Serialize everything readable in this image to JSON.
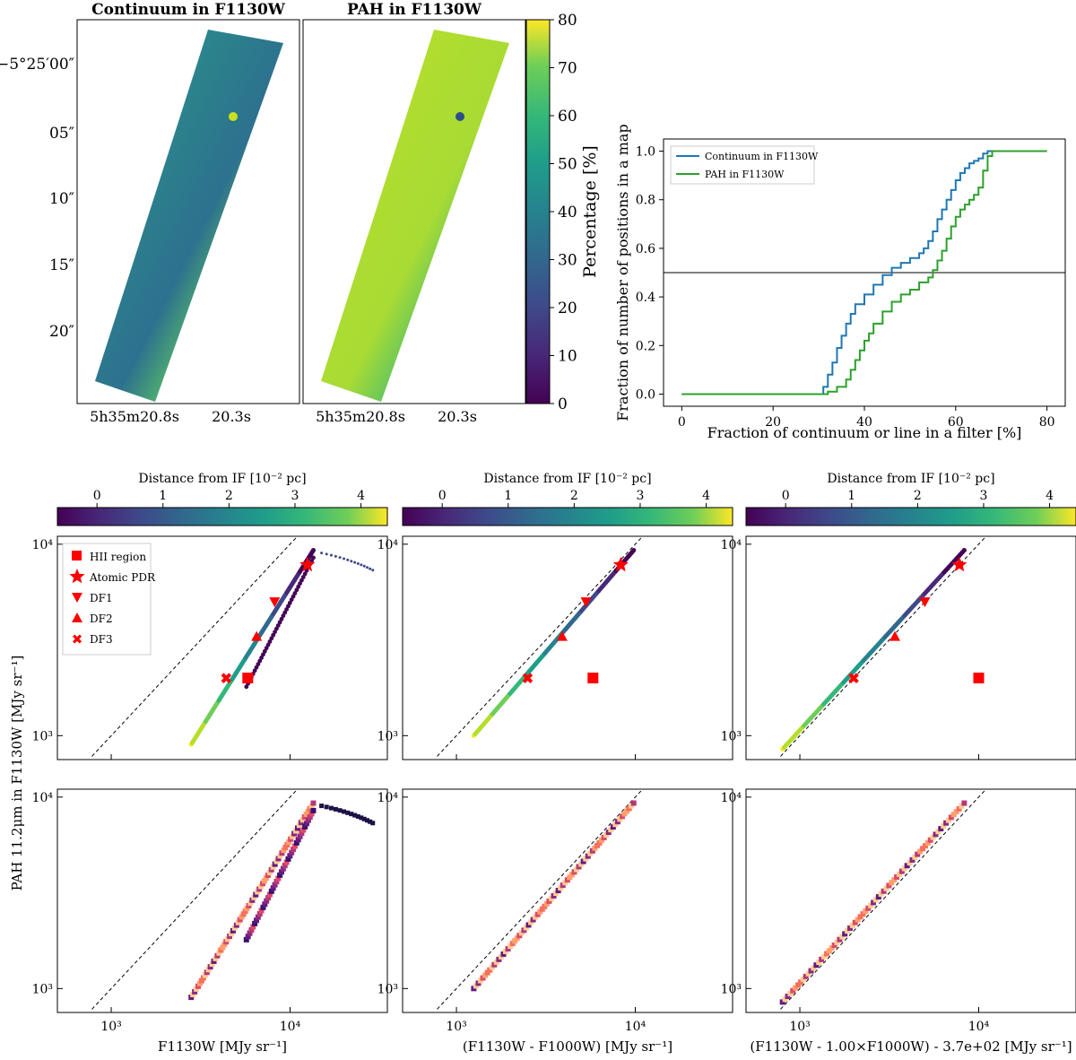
{
  "maps": {
    "title_left": "Continuum in F1130W",
    "title_right": "PAH in F1130W",
    "colorbar_label": "Percentage [%]",
    "colorbar_ticks": [
      "0",
      "10",
      "20",
      "30",
      "40",
      "50",
      "60",
      "70",
      "80"
    ],
    "dec_labels": [
      "−5°25′00″",
      "05″",
      "10″",
      "15″",
      "20″"
    ],
    "ra_labels": [
      "5h35m20.8s",
      "20.3s"
    ]
  },
  "chart_data": [
    {
      "id": "cdf",
      "type": "line",
      "xlabel": "Fraction of continuum or line in a filter [%]",
      "ylabel": "Fraction of number of positions in a map",
      "xlim": [
        -4,
        84
      ],
      "ylim": [
        -0.05,
        1.05
      ],
      "xticks": [
        0,
        20,
        40,
        60,
        80
      ],
      "yticks": [
        0.0,
        0.2,
        0.4,
        0.6,
        0.8,
        1.0
      ],
      "hline": 0.5,
      "series": [
        {
          "name": "Continuum in F1130W",
          "color": "#1f77b4",
          "x": [
            0,
            30,
            31,
            32,
            33,
            34,
            35,
            36,
            37,
            38,
            40,
            42,
            44,
            46,
            48,
            50,
            52,
            53,
            54,
            55,
            56,
            57,
            58,
            59,
            60,
            61,
            62,
            63,
            64,
            65,
            66,
            67,
            68
          ],
          "y": [
            0,
            0,
            0.03,
            0.08,
            0.13,
            0.19,
            0.24,
            0.29,
            0.33,
            0.37,
            0.41,
            0.45,
            0.49,
            0.52,
            0.54,
            0.56,
            0.58,
            0.6,
            0.63,
            0.67,
            0.72,
            0.76,
            0.8,
            0.84,
            0.88,
            0.91,
            0.93,
            0.95,
            0.96,
            0.97,
            0.99,
            1.0,
            1.0
          ]
        },
        {
          "name": "PAH in F1130W",
          "color": "#2ca02c",
          "x": [
            0,
            30,
            32,
            34,
            36,
            37,
            38,
            39,
            40,
            41,
            42,
            44,
            46,
            48,
            50,
            52,
            54,
            55,
            56,
            57,
            58,
            59,
            60,
            61,
            62,
            63,
            64,
            65,
            66,
            67,
            68,
            70,
            80
          ],
          "y": [
            0,
            0,
            0.01,
            0.03,
            0.06,
            0.1,
            0.14,
            0.18,
            0.22,
            0.25,
            0.29,
            0.34,
            0.38,
            0.41,
            0.43,
            0.46,
            0.48,
            0.51,
            0.55,
            0.59,
            0.64,
            0.69,
            0.73,
            0.76,
            0.78,
            0.8,
            0.82,
            0.85,
            0.92,
            0.98,
            1.0,
            1.0,
            1.0
          ]
        }
      ]
    },
    {
      "id": "scatter_top",
      "type": "scatter",
      "ylabel": "PAH 11.2μm in F1130W [MJy sr⁻¹]",
      "xlim": [
        500,
        35000
      ],
      "ylim": [
        750,
        11000
      ],
      "xscale": "log",
      "yscale": "log",
      "colorbar_label": "Distance from IF [10⁻² pc]",
      "colorbar_ticks": [
        "0",
        "1",
        "2",
        "3",
        "4"
      ],
      "legend": [
        "HII region",
        "Atomic PDR",
        "DF1",
        "DF2",
        "DF3"
      ],
      "markers": [
        {
          "label": "HII region",
          "panel": [
            5700,
            5900
          ],
          "x": [
            5800,
            5800,
            10000
          ],
          "y": [
            2000,
            2000,
            2000
          ]
        },
        {
          "label": "Atomic PDR",
          "x": [
            12500,
            8300,
            7800
          ],
          "y": [
            7800,
            7800,
            7800
          ]
        },
        {
          "label": "DF1",
          "x": [
            8200,
            5300,
            5000
          ],
          "y": [
            5000,
            5000,
            5000
          ]
        },
        {
          "label": "DF2",
          "x": [
            6500,
            3900,
            3400
          ],
          "y": [
            3300,
            3300,
            3300
          ]
        },
        {
          "label": "DF3",
          "x": [
            4400,
            2500,
            2000
          ],
          "y": [
            2000,
            2000,
            2000
          ]
        }
      ]
    },
    {
      "id": "density_bottom",
      "type": "heatmap",
      "xlabels": [
        "F1130W [MJy sr⁻¹]",
        "(F1130W - F1000W) [MJy sr⁻¹]",
        "(F1130W - 1.00×F1000W) - 3.7e+02 [MJy sr⁻¹]"
      ],
      "xlim": [
        500,
        35000
      ],
      "ylim": [
        750,
        11000
      ]
    }
  ],
  "axis_ticks": {
    "x_log": [
      "10³",
      "10⁴"
    ],
    "y_log": [
      "10³",
      "10⁴"
    ]
  }
}
